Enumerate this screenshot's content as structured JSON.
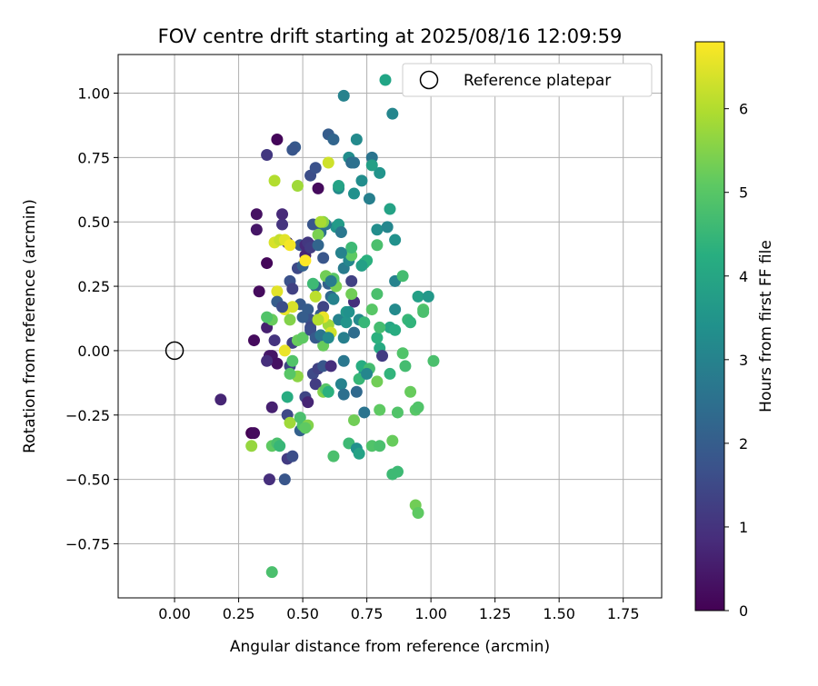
{
  "chart_data": {
    "type": "scatter",
    "title": "FOV centre drift starting at 2025/08/16 12:09:59",
    "xlabel": "Angular distance from reference (arcmin)",
    "ylabel": "Rotation from reference (arcmin)",
    "xlim": [
      -0.22,
      1.9
    ],
    "ylim": [
      -0.96,
      1.15
    ],
    "xticks": [
      "0.00",
      "0.25",
      "0.50",
      "0.75",
      "1.00",
      "1.25",
      "1.50",
      "1.75"
    ],
    "yticks": [
      "−0.75",
      "−0.50",
      "−0.25",
      "0.00",
      "0.25",
      "0.50",
      "0.75",
      "1.00"
    ],
    "grid": true,
    "legend_placement": "top-right",
    "legend": {
      "series_marker_color": "#21a585",
      "reference_label": "Reference platepar"
    },
    "colorbar": {
      "label": "Hours from first FF file",
      "range": [
        0,
        6.8
      ],
      "ticks": [
        "0",
        "1",
        "2",
        "3",
        "4",
        "5",
        "6"
      ],
      "colormap": "viridis"
    },
    "reference_point": {
      "x": 0.0,
      "y": 0.0
    },
    "points": [
      [
        0.31,
        0.04,
        0.2
      ],
      [
        0.36,
        0.34,
        0.1
      ],
      [
        0.32,
        0.53,
        0.3
      ],
      [
        0.32,
        0.47,
        0.4
      ],
      [
        0.4,
        0.82,
        0.1
      ],
      [
        0.36,
        0.76,
        1.1
      ],
      [
        0.42,
        0.49,
        1.0
      ],
      [
        0.44,
        0.42,
        0.9
      ],
      [
        0.42,
        0.53,
        0.8
      ],
      [
        0.36,
        0.09,
        0.6
      ],
      [
        0.37,
        -0.02,
        0.5
      ],
      [
        0.38,
        -0.02,
        0.4
      ],
      [
        0.4,
        -0.05,
        0.3
      ],
      [
        0.33,
        0.23,
        0.2
      ],
      [
        0.3,
        -0.32,
        0.0
      ],
      [
        0.18,
        -0.19,
        0.7
      ],
      [
        0.38,
        -0.22,
        0.6
      ],
      [
        0.37,
        -0.5,
        0.9
      ],
      [
        0.44,
        -0.42,
        1.2
      ],
      [
        0.44,
        -0.25,
        1.5
      ],
      [
        0.45,
        -0.06,
        1.4
      ],
      [
        0.46,
        0.03,
        1.3
      ],
      [
        0.48,
        0.32,
        1.5
      ],
      [
        0.49,
        0.41,
        1.7
      ],
      [
        0.51,
        0.37,
        0.7
      ],
      [
        0.51,
        0.41,
        0.8
      ],
      [
        0.53,
        0.41,
        0.9
      ],
      [
        0.52,
        0.42,
        1.1
      ],
      [
        0.53,
        0.68,
        1.6
      ],
      [
        0.55,
        0.71,
        1.7
      ],
      [
        0.56,
        0.63,
        0.2
      ],
      [
        0.47,
        0.79,
        1.9
      ],
      [
        0.46,
        0.78,
        1.8
      ],
      [
        0.6,
        0.84,
        2.0
      ],
      [
        0.62,
        0.82,
        2.2
      ],
      [
        0.66,
        0.99,
        3.0
      ],
      [
        0.85,
        0.92,
        3.1
      ],
      [
        0.71,
        0.82,
        3.2
      ],
      [
        0.68,
        0.75,
        3.3
      ],
      [
        0.69,
        0.73,
        2.4
      ],
      [
        0.7,
        0.73,
        2.5
      ],
      [
        0.77,
        0.75,
        2.6
      ],
      [
        0.8,
        0.69,
        3.5
      ],
      [
        0.77,
        0.72,
        3.8
      ],
      [
        0.73,
        0.66,
        3.3
      ],
      [
        0.7,
        0.61,
        3.4
      ],
      [
        0.76,
        0.59,
        2.9
      ],
      [
        0.64,
        0.63,
        3.2
      ],
      [
        0.63,
        0.48,
        3.5
      ],
      [
        0.64,
        0.49,
        3.7
      ],
      [
        0.59,
        0.49,
        2.7
      ],
      [
        0.57,
        0.46,
        2.5
      ],
      [
        0.54,
        0.49,
        1.8
      ],
      [
        0.53,
        0.4,
        1.2
      ],
      [
        0.5,
        0.33,
        2.1
      ],
      [
        0.49,
        0.18,
        1.9
      ],
      [
        0.52,
        0.16,
        2.0
      ],
      [
        0.53,
        0.12,
        1.7
      ],
      [
        0.53,
        0.09,
        1.5
      ],
      [
        0.55,
        0.25,
        2.2
      ],
      [
        0.57,
        0.14,
        2.0
      ],
      [
        0.58,
        0.17,
        1.4
      ],
      [
        0.6,
        0.26,
        2.1
      ],
      [
        0.61,
        0.21,
        2.3
      ],
      [
        0.62,
        0.27,
        2.5
      ],
      [
        0.64,
        0.12,
        3.0
      ],
      [
        0.66,
        0.05,
        2.9
      ],
      [
        0.67,
        0.15,
        3.6
      ],
      [
        0.66,
        0.32,
        2.8
      ],
      [
        0.68,
        0.35,
        3.1
      ],
      [
        0.69,
        0.27,
        1.3
      ],
      [
        0.7,
        0.19,
        0.9
      ],
      [
        0.72,
        0.12,
        3.2
      ],
      [
        0.7,
        0.07,
        2.4
      ],
      [
        0.74,
        0.34,
        4.5
      ],
      [
        0.75,
        0.35,
        4.3
      ],
      [
        0.79,
        0.41,
        4.8
      ],
      [
        0.79,
        0.47,
        3.3
      ],
      [
        0.83,
        0.48,
        3.1
      ],
      [
        0.86,
        0.43,
        3.4
      ],
      [
        0.84,
        0.55,
        3.9
      ],
      [
        0.86,
        0.27,
        3.0
      ],
      [
        0.89,
        0.29,
        4.7
      ],
      [
        0.86,
        0.16,
        3.2
      ],
      [
        0.84,
        0.09,
        4.0
      ],
      [
        0.86,
        0.08,
        4.2
      ],
      [
        0.91,
        0.12,
        4.5
      ],
      [
        0.92,
        0.11,
        4.4
      ],
      [
        0.95,
        0.21,
        3.8
      ],
      [
        0.99,
        0.21,
        3.6
      ],
      [
        0.97,
        0.16,
        4.9
      ],
      [
        0.97,
        0.15,
        4.8
      ],
      [
        0.94,
        -0.23,
        5.0
      ],
      [
        1.01,
        -0.04,
        4.8
      ],
      [
        0.89,
        -0.01,
        4.9
      ],
      [
        0.9,
        -0.06,
        4.7
      ],
      [
        0.92,
        -0.16,
        5.2
      ],
      [
        0.95,
        -0.22,
        4.9
      ],
      [
        0.94,
        -0.6,
        5.3
      ],
      [
        0.95,
        -0.63,
        5.1
      ],
      [
        0.87,
        -0.47,
        4.6
      ],
      [
        0.85,
        -0.48,
        4.6
      ],
      [
        0.85,
        -0.35,
        5.2
      ],
      [
        0.77,
        -0.37,
        4.9
      ],
      [
        0.8,
        -0.23,
        5.1
      ],
      [
        0.74,
        -0.24,
        2.6
      ],
      [
        0.74,
        -0.09,
        3.4
      ],
      [
        0.73,
        -0.06,
        4.2
      ],
      [
        0.76,
        -0.07,
        4.7
      ],
      [
        0.79,
        -0.12,
        5.3
      ],
      [
        0.84,
        -0.09,
        4.4
      ],
      [
        0.8,
        0.01,
        4.1
      ],
      [
        0.81,
        -0.02,
        1.2
      ],
      [
        0.79,
        0.05,
        4.3
      ],
      [
        0.8,
        0.09,
        4.7
      ],
      [
        0.74,
        0.11,
        4.5
      ],
      [
        0.77,
        0.16,
        5.0
      ],
      [
        0.79,
        0.22,
        4.8
      ],
      [
        0.69,
        0.22,
        5.3
      ],
      [
        0.69,
        0.37,
        5.1
      ],
      [
        0.69,
        0.4,
        4.6
      ],
      [
        0.65,
        0.38,
        3.0
      ],
      [
        0.65,
        0.46,
        2.7
      ],
      [
        0.63,
        0.25,
        5.4
      ],
      [
        0.62,
        0.28,
        5.0
      ],
      [
        0.59,
        0.29,
        5.3
      ],
      [
        0.58,
        0.5,
        5.5
      ],
      [
        0.57,
        0.5,
        5.9
      ],
      [
        0.56,
        0.45,
        5.4
      ],
      [
        0.6,
        0.73,
        6.3
      ],
      [
        0.64,
        0.64,
        3.9
      ],
      [
        0.48,
        0.64,
        5.8
      ],
      [
        0.39,
        0.66,
        6.0
      ],
      [
        0.39,
        0.42,
        6.4
      ],
      [
        0.41,
        0.43,
        6.2
      ],
      [
        0.43,
        0.43,
        6.5
      ],
      [
        0.45,
        0.41,
        6.7
      ],
      [
        0.51,
        0.35,
        6.8
      ],
      [
        0.4,
        0.23,
        6.5
      ],
      [
        0.43,
        0.16,
        6.6
      ],
      [
        0.46,
        0.17,
        6.4
      ],
      [
        0.45,
        0.12,
        5.5
      ],
      [
        0.48,
        0.04,
        5.2
      ],
      [
        0.5,
        0.05,
        5.1
      ],
      [
        0.48,
        -0.1,
        5.6
      ],
      [
        0.45,
        -0.09,
        5.0
      ],
      [
        0.46,
        -0.04,
        4.9
      ],
      [
        0.43,
        0.0,
        6.6
      ],
      [
        0.44,
        -0.18,
        4.2
      ],
      [
        0.45,
        -0.28,
        5.8
      ],
      [
        0.38,
        -0.37,
        5.1
      ],
      [
        0.4,
        -0.36,
        4.8
      ],
      [
        0.41,
        -0.37,
        4.5
      ],
      [
        0.46,
        -0.41,
        1.6
      ],
      [
        0.43,
        -0.5,
        1.8
      ],
      [
        0.49,
        -0.31,
        2.1
      ],
      [
        0.5,
        -0.29,
        4.9
      ],
      [
        0.49,
        -0.26,
        4.8
      ],
      [
        0.52,
        -0.29,
        5.5
      ],
      [
        0.51,
        -0.3,
        5.1
      ],
      [
        0.51,
        -0.18,
        1.4
      ],
      [
        0.52,
        -0.2,
        0.7
      ],
      [
        0.54,
        -0.09,
        1.5
      ],
      [
        0.55,
        -0.13,
        1.2
      ],
      [
        0.56,
        -0.07,
        1.3
      ],
      [
        0.58,
        -0.06,
        1.8
      ],
      [
        0.58,
        -0.16,
        5.5
      ],
      [
        0.59,
        -0.15,
        5.0
      ],
      [
        0.6,
        -0.16,
        4.3
      ],
      [
        0.62,
        -0.41,
        4.8
      ],
      [
        0.61,
        -0.06,
        0.9
      ],
      [
        0.66,
        -0.04,
        2.7
      ],
      [
        0.65,
        -0.13,
        3.0
      ],
      [
        0.66,
        -0.17,
        2.5
      ],
      [
        0.68,
        -0.36,
        4.6
      ],
      [
        0.71,
        -0.16,
        2.3
      ],
      [
        0.72,
        -0.11,
        4.5
      ],
      [
        0.75,
        -0.09,
        3.1
      ],
      [
        0.71,
        -0.38,
        3.4
      ],
      [
        0.72,
        -0.4,
        3.9
      ],
      [
        0.7,
        -0.27,
        5.3
      ],
      [
        0.58,
        0.36,
        1.8
      ],
      [
        0.56,
        0.41,
        2.2
      ],
      [
        0.54,
        0.26,
        4.6
      ],
      [
        0.55,
        0.21,
        6.1
      ],
      [
        0.6,
        0.1,
        5.8
      ],
      [
        0.61,
        0.07,
        6.3
      ],
      [
        0.58,
        0.13,
        6.6
      ],
      [
        0.56,
        0.12,
        6.0
      ],
      [
        0.59,
        0.05,
        5.6
      ],
      [
        0.58,
        0.02,
        5.2
      ],
      [
        0.61,
        0.27,
        2.8
      ],
      [
        0.4,
        0.19,
        2.0
      ],
      [
        0.42,
        0.17,
        1.6
      ],
      [
        0.45,
        0.27,
        1.7
      ],
      [
        0.39,
        0.04,
        1.0
      ],
      [
        0.36,
        -0.04,
        0.9
      ],
      [
        0.53,
        0.08,
        1.6
      ],
      [
        0.55,
        0.05,
        1.9
      ],
      [
        0.57,
        0.06,
        2.6
      ],
      [
        0.6,
        0.05,
        3.2
      ],
      [
        0.67,
        0.11,
        3.5
      ],
      [
        0.62,
        0.2,
        3.0
      ],
      [
        0.68,
        0.15,
        3.4
      ],
      [
        0.73,
        0.33,
        3.8
      ],
      [
        0.46,
        0.24,
        1.3
      ],
      [
        0.5,
        0.13,
        2.0
      ],
      [
        0.38,
        0.12,
        5.2
      ],
      [
        0.36,
        0.13,
        4.9
      ],
      [
        0.3,
        -0.37,
        5.7
      ],
      [
        0.38,
        -0.86,
        4.8
      ],
      [
        0.31,
        -0.32,
        0.2
      ],
      [
        0.87,
        -0.24,
        4.9
      ],
      [
        0.8,
        -0.37,
        4.8
      ]
    ]
  }
}
